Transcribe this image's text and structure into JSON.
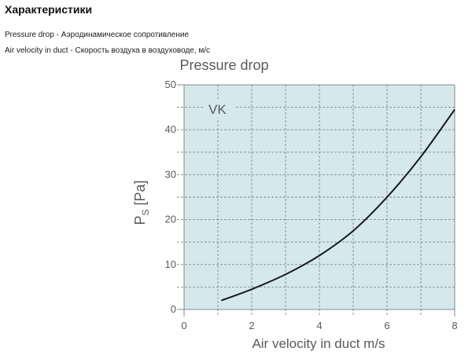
{
  "page": {
    "heading": "Характеристики",
    "legend": [
      "Pressure drop - Аэродинамическое сопротивление",
      "Air velocity in duct - Скорость воздуха в воздуховоде, м/с"
    ]
  },
  "chart_data": {
    "type": "line",
    "title": "Pressure drop",
    "xlabel": "Air velocity in duct m/s",
    "ylabel_main": "P",
    "ylabel_sub": "S",
    "ylabel_unit": "[Pa]",
    "annotation": "VK",
    "xlim": [
      0,
      8
    ],
    "ylim": [
      0,
      50
    ],
    "x_ticks": [
      0,
      2,
      4,
      6,
      8
    ],
    "y_ticks": [
      0,
      10,
      20,
      30,
      40,
      50
    ],
    "grid": true,
    "colors": {
      "plot_background": "#d5e9ec",
      "grid": "#7f8c8e",
      "curve": "#1a1a1a",
      "text": "#5a5a5a"
    },
    "series": [
      {
        "x": [
          1.1,
          2,
          3,
          4,
          5,
          6,
          7,
          8
        ],
        "y": [
          2,
          4.5,
          7.8,
          12,
          17.5,
          25,
          34,
          44.5
        ]
      }
    ]
  }
}
